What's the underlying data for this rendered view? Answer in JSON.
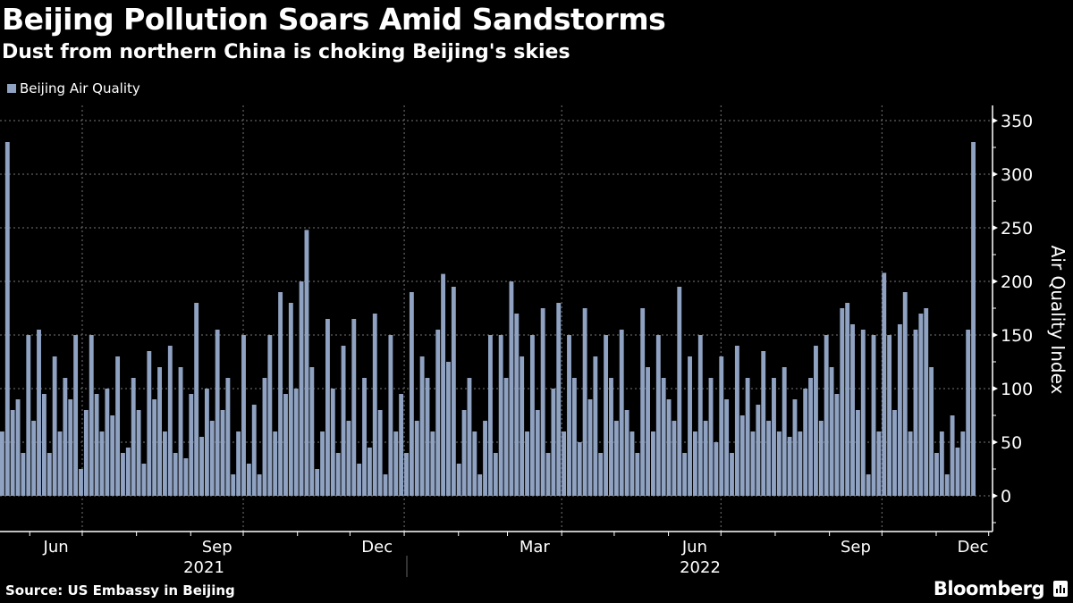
{
  "chart_data": {
    "type": "bar",
    "title": "Beijing Pollution Soars Amid Sandstorms",
    "subtitle": "Dust from northern China is choking Beijing's skies",
    "legend": [
      "Beijing Air Quality"
    ],
    "legend_position": "top-left",
    "ylabel": "Air Quality Index",
    "ylim": [
      -33,
      365
    ],
    "yticks": [
      0,
      50,
      100,
      150,
      200,
      250,
      300,
      350
    ],
    "grid": true,
    "x_start": "2021-05-15",
    "bin_days": 3,
    "x_month_labels": [
      {
        "label": "Jun",
        "month": "2021-06"
      },
      {
        "label": "Sep",
        "month": "2021-09"
      },
      {
        "label": "Dec",
        "month": "2021-12"
      },
      {
        "label": "Mar",
        "month": "2022-03"
      },
      {
        "label": "Jun",
        "month": "2022-06"
      },
      {
        "label": "Sep",
        "month": "2022-09"
      },
      {
        "label": "Dec",
        "month": "2022-12"
      }
    ],
    "x_year_labels": [
      "2021",
      "2022"
    ],
    "series": [
      {
        "name": "Beijing Air Quality",
        "color": "#8fa2c2",
        "values": [
          60,
          330,
          80,
          90,
          40,
          150,
          70,
          155,
          95,
          40,
          130,
          60,
          110,
          90,
          150,
          25,
          80,
          150,
          95,
          60,
          100,
          75,
          130,
          40,
          45,
          110,
          80,
          30,
          135,
          90,
          120,
          60,
          140,
          40,
          120,
          35,
          95,
          180,
          55,
          100,
          70,
          155,
          80,
          110,
          20,
          60,
          150,
          30,
          85,
          20,
          110,
          150,
          60,
          190,
          95,
          180,
          100,
          200,
          248,
          120,
          25,
          60,
          165,
          100,
          40,
          140,
          70,
          165,
          30,
          110,
          45,
          170,
          80,
          20,
          150,
          60,
          95,
          40,
          190,
          70,
          130,
          110,
          60,
          155,
          207,
          125,
          195,
          30,
          80,
          110,
          60,
          20,
          70,
          150,
          40,
          150,
          110,
          200,
          170,
          130,
          60,
          150,
          80,
          175,
          40,
          100,
          180,
          60,
          150,
          110,
          50,
          175,
          90,
          130,
          40,
          150,
          110,
          70,
          155,
          80,
          60,
          40,
          175,
          120,
          60,
          150,
          110,
          90,
          70,
          195,
          40,
          130,
          60,
          150,
          70,
          110,
          50,
          130,
          90,
          40,
          140,
          75,
          110,
          60,
          85,
          135,
          70,
          110,
          60,
          120,
          55,
          90,
          60,
          100,
          110,
          140,
          70,
          150,
          120,
          95,
          175,
          180,
          160,
          80,
          155,
          20,
          150,
          60,
          208,
          150,
          80,
          160,
          190,
          60,
          155,
          170,
          175,
          120,
          40,
          60,
          20,
          75,
          45,
          60,
          155,
          330
        ]
      }
    ],
    "source": "Source: US Embassy in Beijing",
    "brand": "Bloomberg"
  }
}
